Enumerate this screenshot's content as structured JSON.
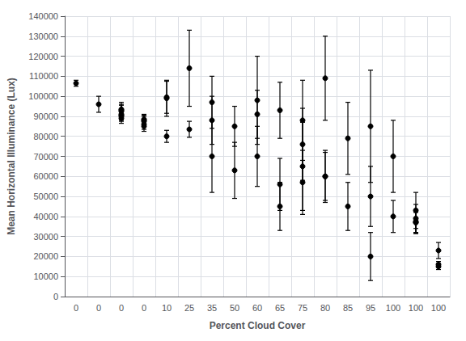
{
  "chart_data": {
    "type": "errorbar",
    "xlabel": "Percent Cloud Cover",
    "ylabel": "Mean Horizontal Illuminance (Lux)",
    "categories": [
      "0",
      "0",
      "0",
      "0",
      "10",
      "25",
      "35",
      "50",
      "60",
      "65",
      "75",
      "80",
      "85",
      "95",
      "100",
      "100",
      "100"
    ],
    "values": [
      [
        106500
      ],
      [
        96000
      ],
      [
        93500,
        93000,
        92500,
        91000,
        90500,
        90000,
        89000
      ],
      [
        88500,
        88000,
        87500,
        86000,
        85000
      ],
      [
        80000,
        99500,
        99000
      ],
      [
        83500,
        114000
      ],
      [
        97000,
        88000,
        70000
      ],
      [
        63000,
        85000
      ],
      [
        91000,
        98000,
        70000
      ],
      [
        93000,
        45000,
        56000
      ],
      [
        88000,
        76000,
        65000,
        57000
      ],
      [
        109000,
        60000,
        60000
      ],
      [
        79000,
        45000
      ],
      [
        85000,
        50000,
        20000
      ],
      [
        70000,
        40000
      ],
      [
        43000,
        39000,
        37500,
        37000,
        37000
      ],
      [
        23000,
        16000,
        15000
      ]
    ],
    "yerr": [
      [
        1500
      ],
      [
        4000
      ],
      [
        3500,
        3000,
        3000,
        2500,
        2500,
        2500,
        2500
      ],
      [
        2500,
        2500,
        2500,
        2500,
        2500
      ],
      [
        3000,
        8000,
        9000
      ],
      [
        4000,
        19000
      ],
      [
        13000,
        12000,
        18000
      ],
      [
        14000,
        10000
      ],
      [
        12000,
        22000,
        15000
      ],
      [
        14000,
        12000,
        13000
      ],
      [
        20000,
        18000,
        22000,
        16000
      ],
      [
        21000,
        12000,
        13000
      ],
      [
        18000,
        12000
      ],
      [
        28000,
        15000,
        12000
      ],
      [
        18000,
        8000
      ],
      [
        9000,
        7000,
        6000,
        5500,
        5000
      ],
      [
        4000,
        1500,
        1500
      ]
    ],
    "color": "#000000",
    "ylim": [
      0,
      140000
    ],
    "yticks": [
      0,
      10000,
      20000,
      30000,
      40000,
      50000,
      60000,
      70000,
      80000,
      90000,
      100000,
      110000,
      120000,
      130000,
      140000
    ],
    "grid": true
  }
}
